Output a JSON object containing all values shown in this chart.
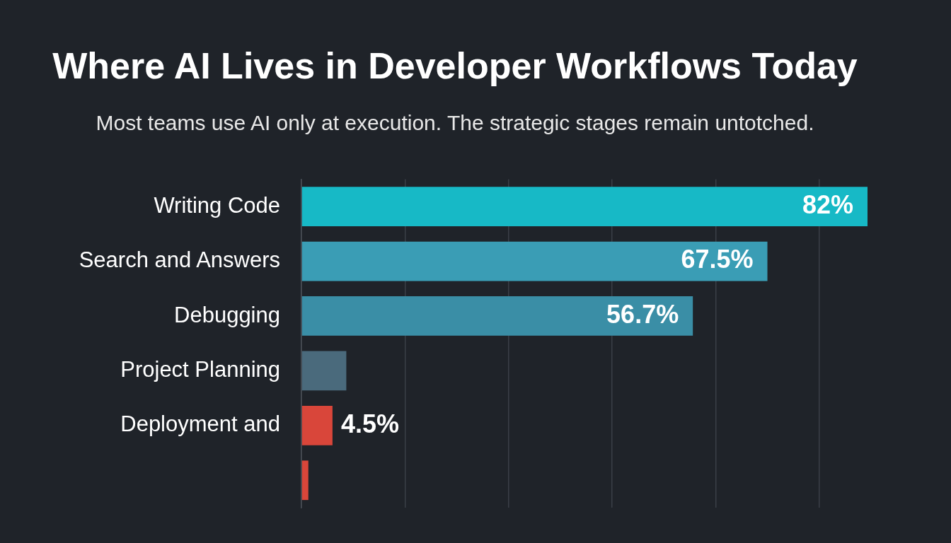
{
  "chart_data": {
    "type": "bar",
    "orientation": "horizontal",
    "title": "Where AI Lives in Developer Workflows Today",
    "subtitle": "Most teams use AI only at execution. The strategic stages remain untotched.",
    "categories": [
      "Writing Code",
      "Search and Answers",
      "Debugging",
      "Project Planning",
      "Deployment and",
      null
    ],
    "values": [
      82,
      67.5,
      56.7,
      6.5,
      4.5,
      1
    ],
    "colors": [
      "#17b9c6",
      "#3a9db5",
      "#3a8ea6",
      "#4a6a7c",
      "#d9463a",
      "#d9463a"
    ],
    "value_labels": [
      "82%",
      "67.5%",
      "56.7%",
      null,
      "4.5%",
      null
    ],
    "xlim": [
      0,
      82
    ],
    "xticks": [
      {
        "value": 0,
        "label": null
      },
      {
        "value": 15,
        "label": null
      },
      {
        "value": 30,
        "label": null
      },
      {
        "value": 45,
        "label": null
      },
      {
        "value": 60,
        "label": null
      },
      {
        "value": 75,
        "label": null
      }
    ],
    "grid": "x",
    "tick_labels": "y",
    "legend": false
  }
}
